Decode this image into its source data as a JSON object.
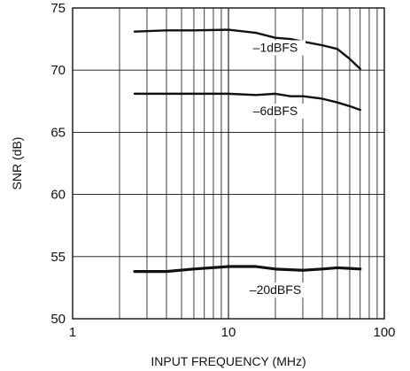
{
  "chart_data": {
    "type": "line",
    "title": "",
    "xlabel": "INPUT FREQUENCY (MHz)",
    "ylabel": "SNR (dB)",
    "x_scale": "log",
    "xlim": [
      1,
      100
    ],
    "ylim": [
      50,
      75
    ],
    "x_ticks": [
      1,
      10,
      100
    ],
    "x_tick_labels": [
      "1",
      "10",
      "100"
    ],
    "y_ticks": [
      50,
      55,
      60,
      65,
      70,
      75
    ],
    "y_tick_labels": [
      "50",
      "55",
      "60",
      "65",
      "70",
      "75"
    ],
    "grid": true,
    "legend": "none",
    "series": [
      {
        "name": "–1dBFS",
        "x": [
          2.5,
          4,
          6,
          10,
          15,
          20,
          25,
          30,
          40,
          50,
          60,
          70
        ],
        "y": [
          73.1,
          73.2,
          73.2,
          73.25,
          73.0,
          72.6,
          72.5,
          72.3,
          72.0,
          71.7,
          70.9,
          70.1
        ]
      },
      {
        "name": "–6dBFS",
        "x": [
          2.5,
          5,
          10,
          15,
          20,
          25,
          30,
          40,
          50,
          60,
          70
        ],
        "y": [
          68.1,
          68.1,
          68.1,
          68.0,
          68.1,
          67.9,
          67.9,
          67.7,
          67.4,
          67.1,
          66.8
        ]
      },
      {
        "name": "–20dBFS",
        "x": [
          2.5,
          4,
          6,
          10,
          15,
          20,
          30,
          40,
          50,
          60,
          70
        ],
        "y": [
          53.8,
          53.8,
          54.0,
          54.2,
          54.2,
          54.0,
          53.9,
          54.0,
          54.1,
          54.05,
          54.0
        ]
      }
    ]
  }
}
